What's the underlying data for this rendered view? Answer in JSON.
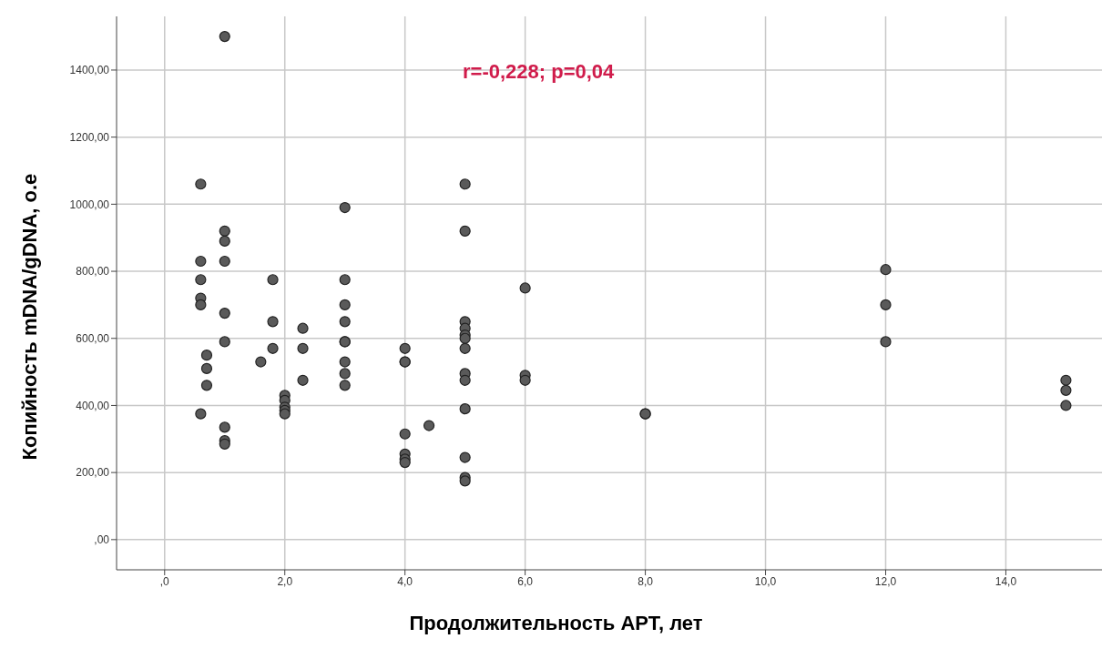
{
  "chart_data": {
    "type": "scatter",
    "xlabel": "Продолжительность АРТ, лет",
    "ylabel": "Копийность mDNA/gDNA, o.e",
    "annotations": [
      "r=-0,228; p=0,04"
    ],
    "x": [
      0.6,
      0.6,
      0.6,
      0.6,
      0.6,
      0.6,
      0.7,
      0.7,
      0.7,
      1,
      1,
      1,
      1,
      1,
      1,
      1,
      1,
      1,
      1.6,
      1.8,
      1.8,
      1.8,
      2,
      2,
      2,
      2,
      2,
      2.3,
      2.3,
      2.3,
      3,
      3,
      3,
      3,
      3,
      3,
      3,
      3,
      3,
      4,
      4,
      4,
      4,
      4,
      4,
      4,
      4.4,
      5,
      5,
      5,
      5,
      5,
      5,
      5,
      5,
      5,
      5,
      5,
      5,
      5,
      6,
      6,
      6,
      8,
      8,
      12,
      12,
      12,
      15,
      15,
      15
    ],
    "values": [
      1060,
      830,
      775,
      720,
      700,
      375,
      550,
      510,
      460,
      1500,
      920,
      890,
      830,
      675,
      590,
      335,
      295,
      285,
      530,
      775,
      650,
      570,
      430,
      415,
      395,
      385,
      375,
      630,
      570,
      475,
      990,
      775,
      700,
      650,
      590,
      590,
      530,
      495,
      460,
      570,
      530,
      530,
      315,
      255,
      240,
      230,
      340,
      1060,
      920,
      650,
      630,
      610,
      600,
      570,
      495,
      475,
      390,
      245,
      185,
      175,
      750,
      490,
      475,
      375,
      375,
      805,
      700,
      590,
      475,
      445,
      400
    ],
    "color": "#5a5a5a",
    "marker": "circle",
    "grid": true,
    "xlim": [
      -0.8,
      15.6
    ],
    "xticks": [
      {
        "value": 0,
        "label": ",0"
      },
      {
        "value": 2,
        "label": "2,0"
      },
      {
        "value": 4,
        "label": "4,0"
      },
      {
        "value": 6,
        "label": "6,0"
      },
      {
        "value": 8,
        "label": "8,0"
      },
      {
        "value": 10,
        "label": "10,0"
      },
      {
        "value": 12,
        "label": "12,0"
      },
      {
        "value": 14,
        "label": "14,0"
      }
    ],
    "ylim": [
      -90,
      1560
    ],
    "yticks": [
      {
        "value": 0,
        "label": ",00"
      },
      {
        "value": 200,
        "label": "200,00"
      },
      {
        "value": 400,
        "label": "400,00"
      },
      {
        "value": 600,
        "label": "600,00"
      },
      {
        "value": 800,
        "label": "800,00"
      },
      {
        "value": 1000,
        "label": "1000,00"
      },
      {
        "value": 1200,
        "label": "1200,00"
      },
      {
        "value": 1400,
        "label": "1400,00"
      }
    ]
  }
}
